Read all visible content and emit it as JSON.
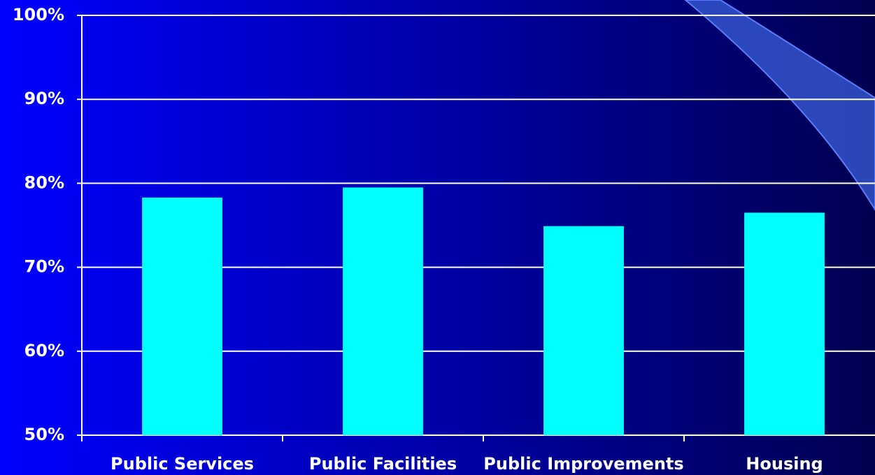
{
  "chart_data": {
    "type": "bar",
    "categories": [
      "Public Services",
      "Public Facilities",
      "Public Improvements",
      "Housing"
    ],
    "values": [
      78.3,
      79.5,
      74.9,
      76.5
    ],
    "color": "#00ffff",
    "ylim": [
      50,
      100
    ],
    "yticks": [
      {
        "value": 50,
        "label": "50%"
      },
      {
        "value": 60,
        "label": "60%"
      },
      {
        "value": 70,
        "label": "70%"
      },
      {
        "value": 80,
        "label": "80%"
      },
      {
        "value": 90,
        "label": "90%"
      },
      {
        "value": 100,
        "label": "100%"
      }
    ],
    "grid": true
  }
}
